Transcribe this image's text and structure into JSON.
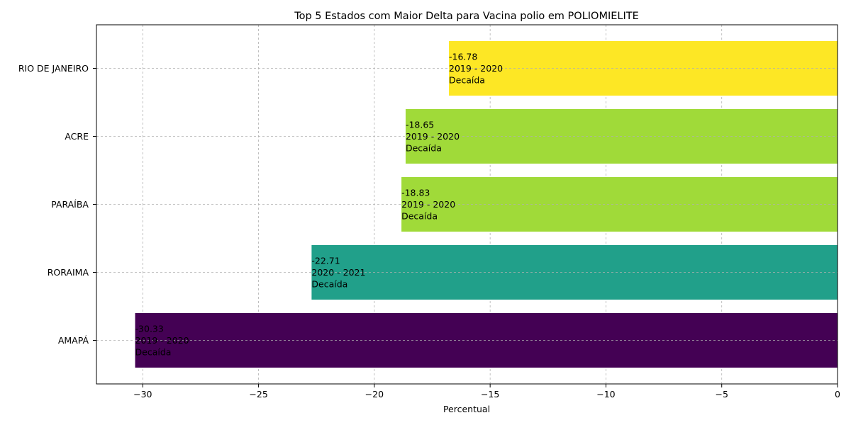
{
  "chart_data": {
    "type": "bar",
    "orientation": "horizontal",
    "title": "Top 5 Estados com Maior Delta para Vacina polio em POLIOMIELITE",
    "xlabel": "Percentual",
    "ylabel": "",
    "xlim": [
      -32,
      0
    ],
    "x_ticks": [
      -30,
      -25,
      -20,
      -15,
      -10,
      -5,
      0
    ],
    "x_tick_labels": [
      "−30",
      "−25",
      "−20",
      "−15",
      "−10",
      "−5",
      "0"
    ],
    "grid": true,
    "categories": [
      "AMAPÁ",
      "RORAIMA",
      "PARAÍBA",
      "ACRE",
      "RIO DE JANEIRO"
    ],
    "values": [
      -30.33,
      -22.71,
      -18.83,
      -18.65,
      -16.78
    ],
    "colors": [
      "#440154",
      "#21a08a",
      "#a0da39",
      "#a0da39",
      "#fde725"
    ],
    "annotations": [
      {
        "value": "-30.33",
        "period": "2019 - 2020",
        "status": "Decaída"
      },
      {
        "value": "-22.71",
        "period": "2020 - 2021",
        "status": "Decaída"
      },
      {
        "value": "-18.83",
        "period": "2019 - 2020",
        "status": "Decaída"
      },
      {
        "value": "-18.65",
        "period": "2019 - 2020",
        "status": "Decaída"
      },
      {
        "value": "-16.78",
        "period": "2019 - 2020",
        "status": "Decaída"
      }
    ]
  }
}
